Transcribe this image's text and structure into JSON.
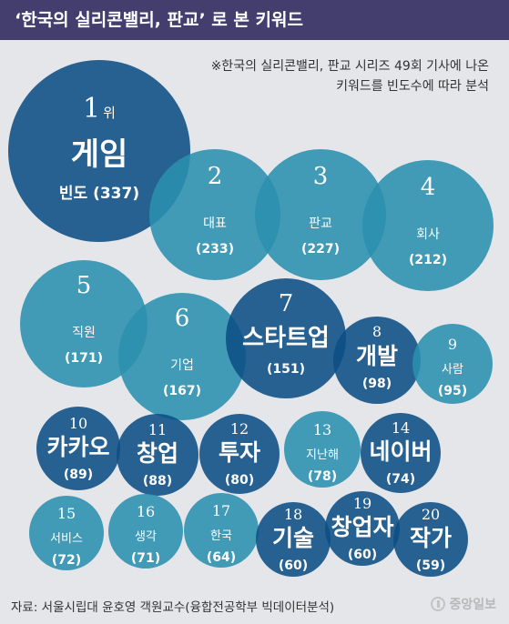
{
  "header": {
    "title": "‘한국의 실리콘밸리, 판교’ 로 본 키워드"
  },
  "note": {
    "line1": "※한국의 실리콘밸리, 판교 시리즈 49회 기사에 나온",
    "line2": "키워드를 빈도수에 따라 분석"
  },
  "colors": {
    "dark": "#0d4f84",
    "light": "#2a8fae",
    "header_bg": "#433e6e",
    "background": "#e4e6ea"
  },
  "chart_data": {
    "type": "bubble",
    "title": "‘한국의 실리콘밸리, 판교’ 로 본 키워드",
    "first_rank_suffix": "위",
    "first_freq_prefix": "빈도",
    "items": [
      {
        "rank": 1,
        "keyword": "게임",
        "frequency": 337,
        "style": "dark"
      },
      {
        "rank": 2,
        "keyword": "대표",
        "frequency": 233,
        "style": "light"
      },
      {
        "rank": 3,
        "keyword": "판교",
        "frequency": 227,
        "style": "light"
      },
      {
        "rank": 4,
        "keyword": "회사",
        "frequency": 212,
        "style": "light"
      },
      {
        "rank": 5,
        "keyword": "직원",
        "frequency": 171,
        "style": "light"
      },
      {
        "rank": 6,
        "keyword": "기업",
        "frequency": 167,
        "style": "light"
      },
      {
        "rank": 7,
        "keyword": "스타트업",
        "frequency": 151,
        "style": "dark"
      },
      {
        "rank": 8,
        "keyword": "개발",
        "frequency": 98,
        "style": "dark"
      },
      {
        "rank": 9,
        "keyword": "사람",
        "frequency": 95,
        "style": "light"
      },
      {
        "rank": 10,
        "keyword": "카카오",
        "frequency": 89,
        "style": "dark"
      },
      {
        "rank": 11,
        "keyword": "창업",
        "frequency": 88,
        "style": "dark"
      },
      {
        "rank": 12,
        "keyword": "투자",
        "frequency": 80,
        "style": "dark"
      },
      {
        "rank": 13,
        "keyword": "지난해",
        "frequency": 78,
        "style": "light"
      },
      {
        "rank": 14,
        "keyword": "네이버",
        "frequency": 74,
        "style": "dark"
      },
      {
        "rank": 15,
        "keyword": "서비스",
        "frequency": 72,
        "style": "light"
      },
      {
        "rank": 16,
        "keyword": "생각",
        "frequency": 71,
        "style": "light"
      },
      {
        "rank": 17,
        "keyword": "한국",
        "frequency": 64,
        "style": "light"
      },
      {
        "rank": 18,
        "keyword": "기술",
        "frequency": 60,
        "style": "dark"
      },
      {
        "rank": 19,
        "keyword": "창업자",
        "frequency": 60,
        "style": "dark"
      },
      {
        "rank": 20,
        "keyword": "작가",
        "frequency": 59,
        "style": "dark"
      }
    ]
  },
  "source": {
    "text": "자료: 서울시립대 윤호영 객원교수(융합전공학부 빅데이터분석)"
  },
  "logo": {
    "text": "중앙일보"
  }
}
